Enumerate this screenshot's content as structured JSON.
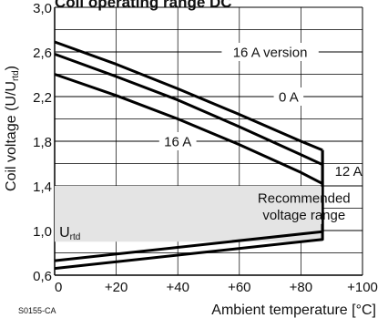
{
  "chart_data": {
    "type": "line",
    "title": "Coil operating range DC",
    "ylabel_main": "Coil voltage (U/U",
    "ylabel_sub": "rtd",
    "ylabel_end": ")",
    "xlabel": "Ambient temperature [°C]",
    "code": "S0155-CA",
    "xlim": [
      0,
      100
    ],
    "ylim": [
      0.6,
      3.0
    ],
    "xticks": [
      {
        "value": 0,
        "label": "0"
      },
      {
        "value": 20,
        "label": "+20"
      },
      {
        "value": 40,
        "label": "+40"
      },
      {
        "value": 60,
        "label": "+60"
      },
      {
        "value": 80,
        "label": "+80"
      },
      {
        "value": 100,
        "label": "+100"
      }
    ],
    "yticks": [
      {
        "value": 0.6,
        "label": "0,6"
      },
      {
        "value": 1.0,
        "label": "1,0"
      },
      {
        "value": 1.4,
        "label": "1,4"
      },
      {
        "value": 1.8,
        "label": "1,8"
      },
      {
        "value": 2.2,
        "label": "2,2"
      },
      {
        "value": 2.6,
        "label": "2,6"
      },
      {
        "value": 3.0,
        "label": "3,0"
      }
    ],
    "grid": true,
    "series": [
      {
        "name": "16 A version",
        "x": [
          0,
          20,
          40,
          60,
          80,
          87
        ],
        "y": [
          2.69,
          2.49,
          2.27,
          2.04,
          1.8,
          1.72
        ]
      },
      {
        "name": "0 A",
        "x": [
          0,
          20,
          40,
          60,
          80,
          87
        ],
        "y": [
          2.58,
          2.38,
          2.17,
          1.93,
          1.68,
          1.59
        ]
      },
      {
        "name": "16 A",
        "x": [
          0,
          20,
          40,
          60,
          80,
          87
        ],
        "y": [
          2.4,
          2.21,
          2.0,
          1.77,
          1.52,
          1.42
        ]
      },
      {
        "name": "",
        "x": [
          0,
          87,
          87
        ],
        "y": [
          0.73,
          0.99,
          1.72
        ]
      },
      {
        "name": "",
        "x": [
          0,
          87,
          87
        ],
        "y": [
          0.66,
          0.92,
          1.72
        ]
      }
    ],
    "annotations": [
      {
        "text": "12 A",
        "x": 91,
        "y": 1.53
      },
      {
        "text": "Recommended",
        "x": 81,
        "y": 1.29
      },
      {
        "text": "voltage range",
        "x": 81,
        "y": 1.14
      }
    ],
    "region": {
      "label": "Recommended voltage range",
      "x": [
        0,
        87
      ],
      "y": [
        0.9,
        1.4
      ]
    },
    "reference": {
      "label": "U",
      "sub": "rtd",
      "y": 1.0
    }
  }
}
